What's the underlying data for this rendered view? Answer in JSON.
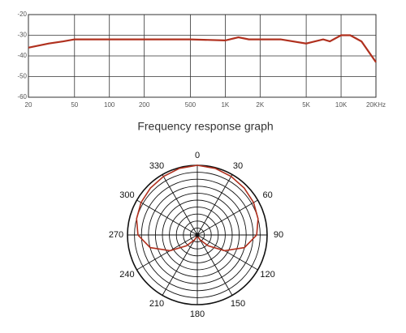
{
  "chart_data": [
    {
      "type": "line",
      "title": "Frequency response graph",
      "log_x": true,
      "grid": true,
      "xlim": [
        20,
        20000
      ],
      "ylim": [
        -60,
        -20
      ],
      "xticks": [
        20,
        50,
        100,
        200,
        500,
        {
          "value": 1000,
          "label": "1K"
        },
        {
          "value": 2000,
          "label": "2K"
        },
        {
          "value": 5000,
          "label": "5K"
        },
        {
          "value": 10000,
          "label": "10K"
        },
        {
          "value": 20000,
          "label": "20KHz"
        }
      ],
      "yticks": [
        -60,
        -50,
        -40,
        -30,
        -20
      ],
      "series": [
        {
          "color": "#b0301e",
          "x": [
            20,
            30,
            40,
            50,
            100,
            200,
            500,
            1000,
            1300,
            1600,
            2000,
            3000,
            5000,
            7000,
            8000,
            10000,
            12000,
            15000,
            20000
          ],
          "values": [
            -36,
            -34,
            -33,
            -32,
            -32,
            -32,
            -32,
            -32.5,
            -31,
            -32,
            -32,
            -32,
            -34,
            -32,
            -33,
            -30,
            -30,
            -33,
            -43
          ]
        }
      ]
    },
    {
      "type": "polar",
      "rlim": [
        0,
        1
      ],
      "grid": true,
      "angle_ticks": [
        0,
        30,
        60,
        90,
        120,
        150,
        180,
        210,
        240,
        270,
        300,
        330
      ],
      "series": [
        {
          "color": "#b0301e",
          "theta": [
            0,
            15,
            30,
            45,
            60,
            75,
            90,
            105,
            120,
            135,
            150,
            165,
            180,
            195,
            210,
            225,
            240,
            255,
            270,
            285,
            300,
            315,
            330,
            345,
            360
          ],
          "values": [
            1.0,
            0.99,
            0.97,
            0.95,
            0.93,
            0.9,
            0.85,
            0.7,
            0.45,
            0.22,
            0.08,
            0.02,
            0,
            0.02,
            0.08,
            0.22,
            0.45,
            0.7,
            0.85,
            0.9,
            0.93,
            0.95,
            0.97,
            0.99,
            1.0
          ]
        }
      ]
    }
  ]
}
